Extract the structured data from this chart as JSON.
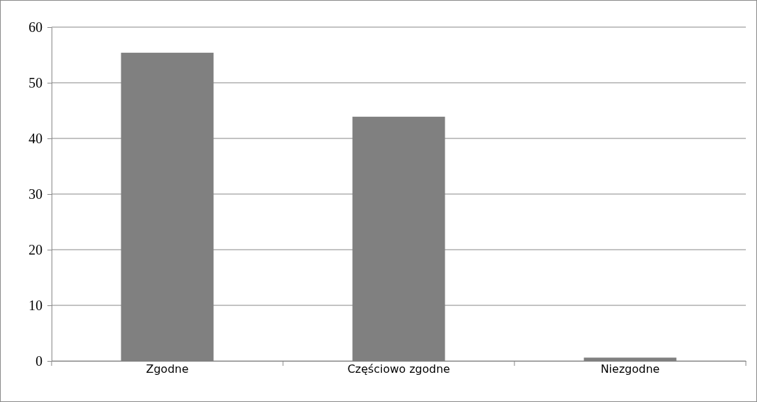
{
  "chart_data": {
    "type": "bar",
    "categories": [
      "Zgodne",
      "Częściowo zgodne",
      "Niezgodne"
    ],
    "values": [
      55.4,
      43.9,
      0.6
    ],
    "color": "#808080",
    "ylim": [
      0,
      60
    ],
    "yticks": [
      0,
      10,
      20,
      30,
      40,
      50,
      60
    ],
    "grid": "y"
  }
}
